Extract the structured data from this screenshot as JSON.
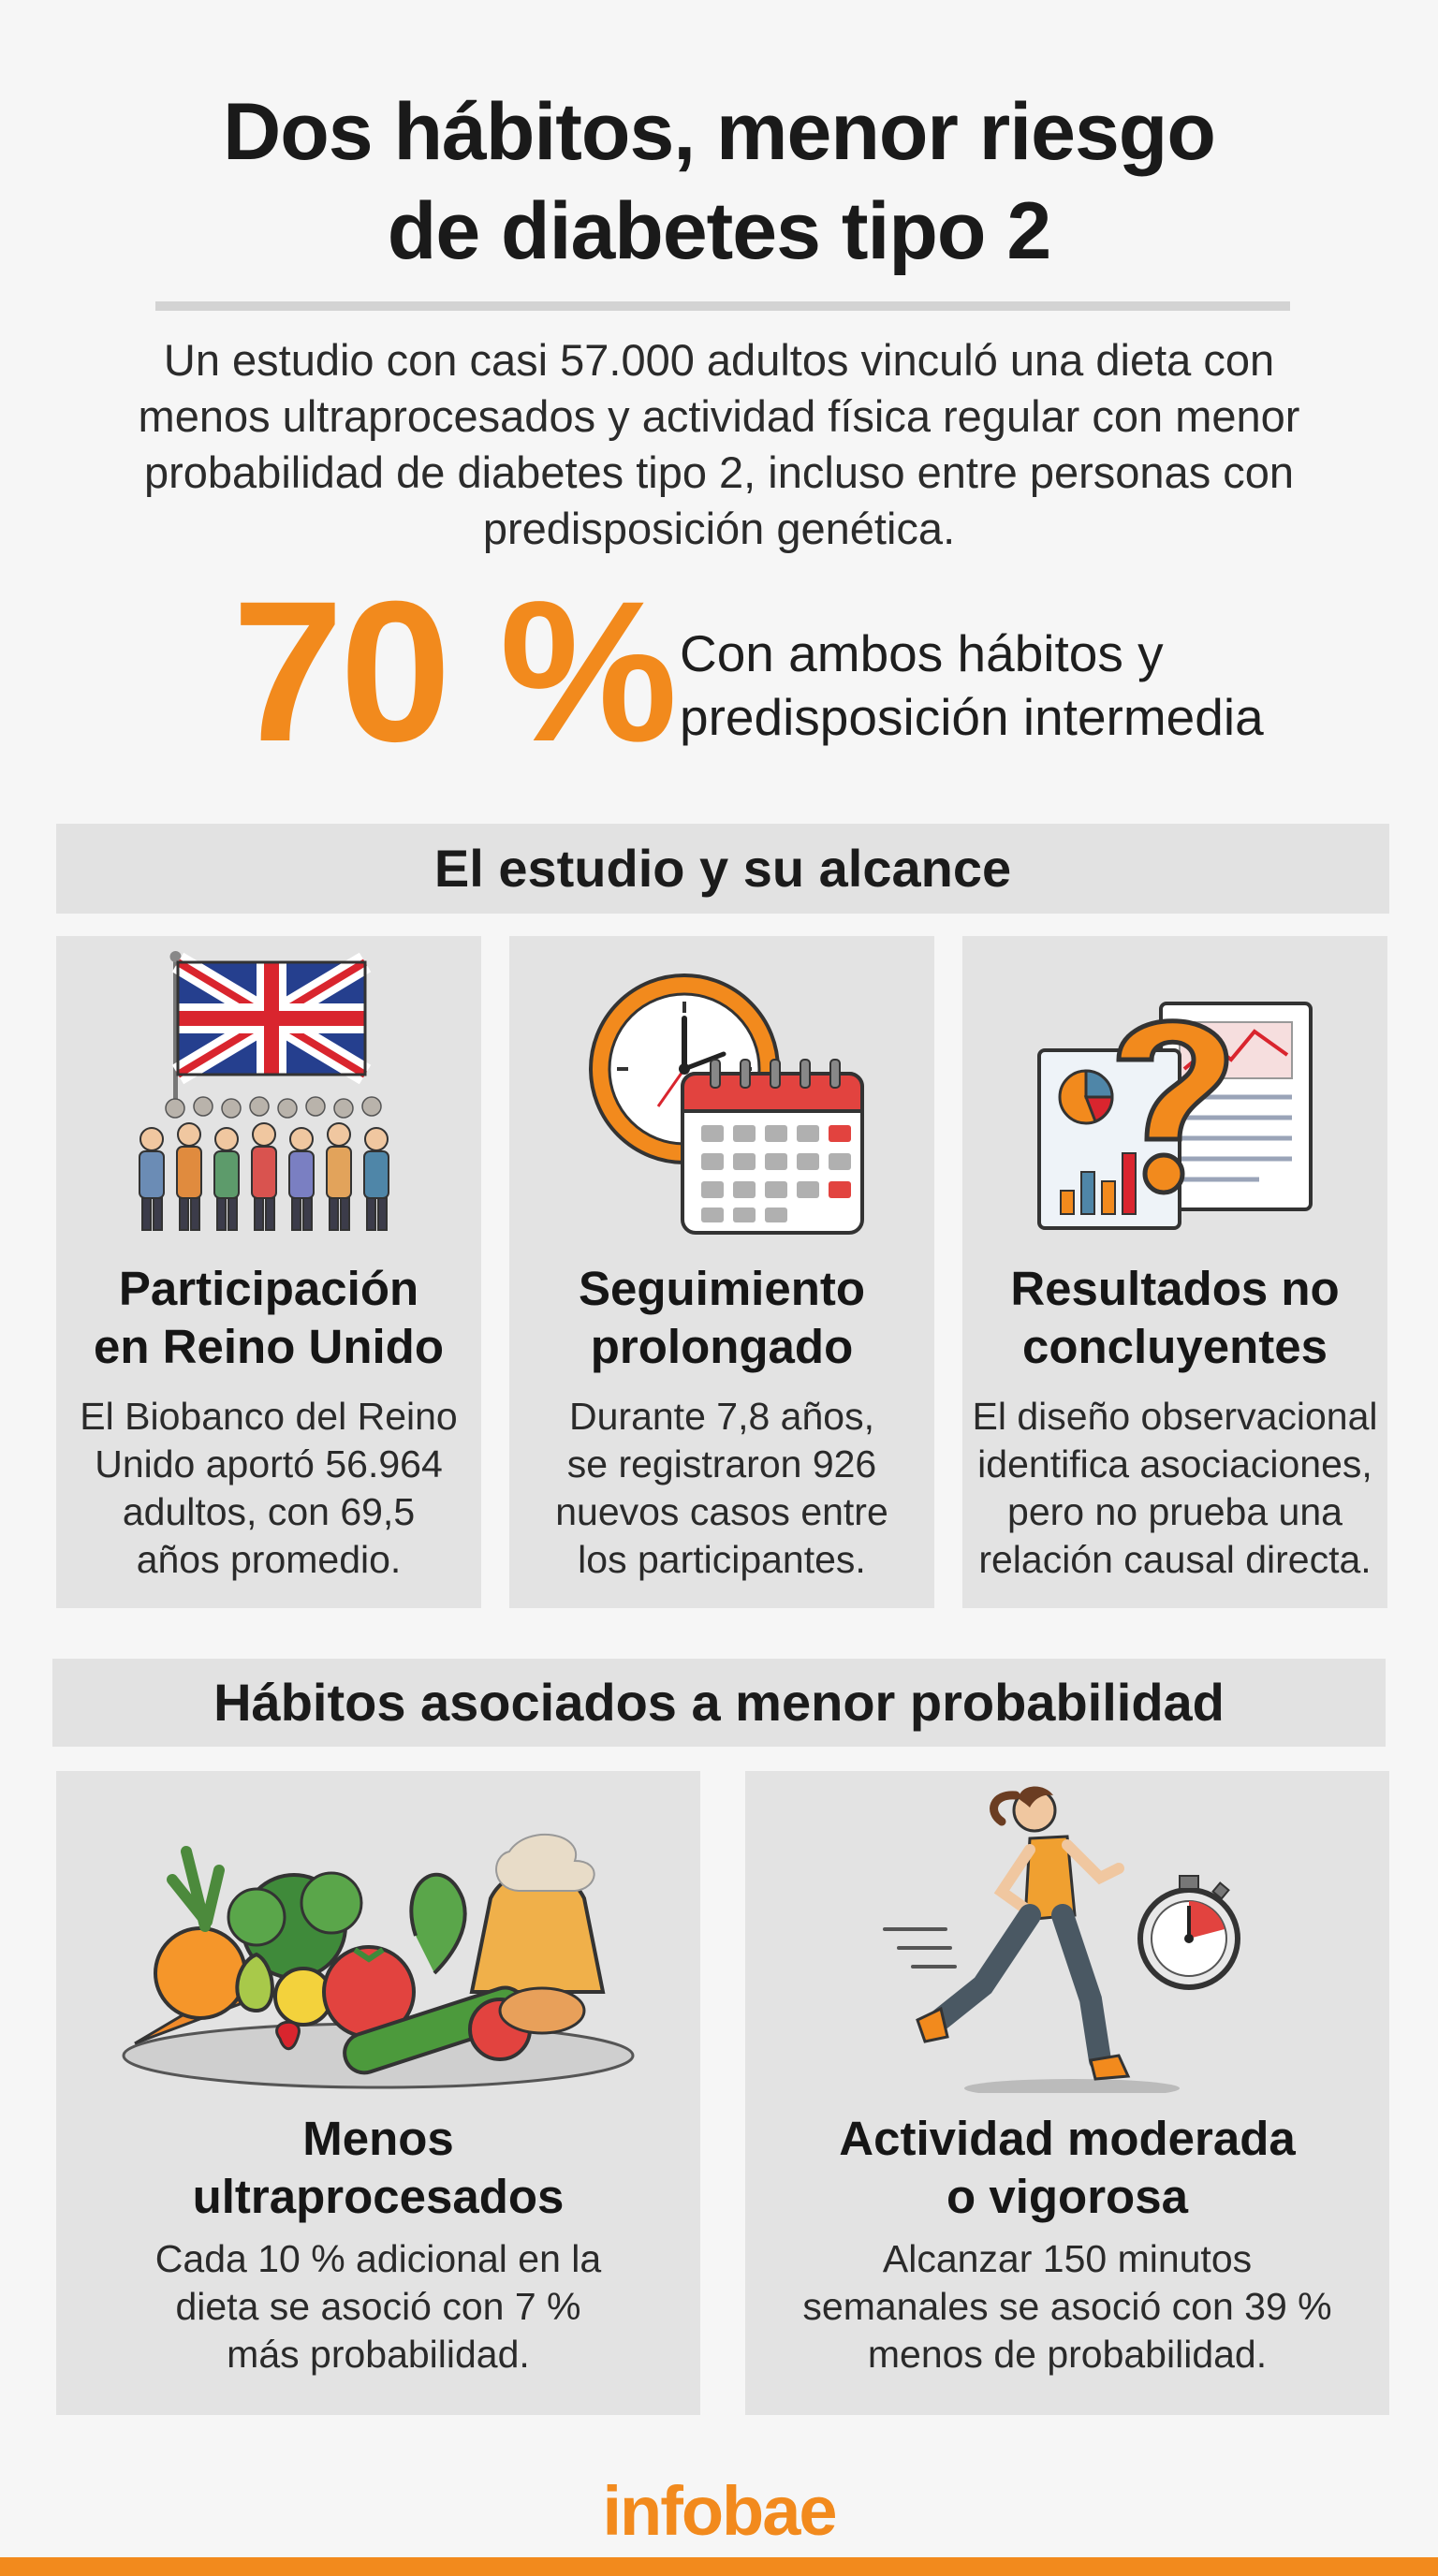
{
  "header": {
    "title_lines": [
      "Dos hábitos, menor riesgo",
      "de diabetes tipo 2"
    ],
    "intro": "Un estudio con casi 57.000 adultos vinculó una dieta con menos ultraprocesados y actividad física regular con menor probabilidad de diabetes tipo 2, incluso entre personas con predisposición genética."
  },
  "highlight": {
    "value": "70 %",
    "caption_lines": [
      "Con ambos hábitos y",
      "predisposición intermedia"
    ]
  },
  "study_section": {
    "heading": "El estudio y su alcance",
    "cards": [
      {
        "icon": "uk-flag-crowd-icon",
        "title_lines": [
          "Participación",
          "en Reino Unido"
        ],
        "text_lines": [
          "El Biobanco del Reino",
          "Unido aportó 56.964",
          "adultos, con 69,5",
          "años promedio."
        ]
      },
      {
        "icon": "clock-calendar-icon",
        "title_lines": [
          "Seguimiento",
          "prolongado"
        ],
        "text_lines": [
          "Durante 7,8 años,",
          "se registraron 926",
          "nuevos casos entre",
          "los participantes."
        ]
      },
      {
        "icon": "question-report-icon",
        "title_lines": [
          "Resultados no",
          "concluyentes"
        ],
        "text_lines": [
          "El diseño observacional",
          "identifica asociaciones,",
          "pero no prueba una",
          "relación causal directa."
        ]
      }
    ]
  },
  "habits_section": {
    "heading": "Hábitos asociados a menor probabilidad",
    "cards": [
      {
        "icon": "fruits-vegetables-icon",
        "title_lines": [
          "Menos",
          "ultraprocesados"
        ],
        "text_lines": [
          "Cada 10 % adicional en la",
          "dieta se asoció con 7 %",
          "más probabilidad."
        ]
      },
      {
        "icon": "runner-stopwatch-icon",
        "title_lines": [
          "Actividad moderada",
          "o vigorosa"
        ],
        "text_lines": [
          "Alcanzar 150 minutos",
          "semanales se asoció con 39 %",
          "menos de probabilidad."
        ]
      }
    ]
  },
  "footer": {
    "logo": "infobae"
  },
  "colors": {
    "accent": "#f28a1d",
    "card_bg": "#e3e3e3",
    "page_bg": "#f6f6f6"
  }
}
